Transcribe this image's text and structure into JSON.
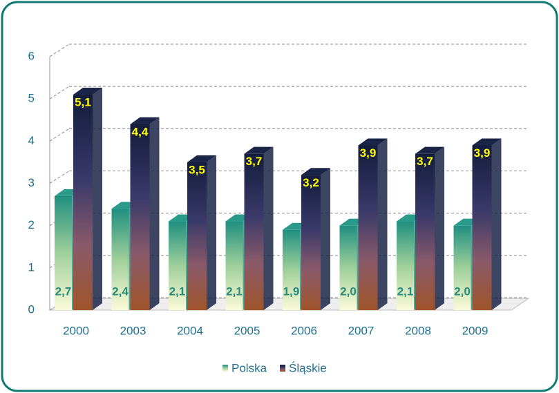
{
  "chart_data": {
    "type": "bar3d",
    "categories": [
      "2000",
      "2003",
      "2004",
      "2005",
      "2006",
      "2007",
      "2008",
      "2009"
    ],
    "series": [
      {
        "name": "Polska",
        "color": "#2a9a8a",
        "values": [
          2.7,
          2.4,
          2.1,
          2.1,
          1.9,
          2.0,
          2.1,
          2.0
        ],
        "value_labels": [
          "2,7",
          "2,4",
          "2,1",
          "2,1",
          "1,9",
          "2,0",
          "2,1",
          "2,0"
        ]
      },
      {
        "name": "Śląskie",
        "color": "#1a2446",
        "values": [
          5.1,
          4.4,
          3.5,
          3.7,
          3.2,
          3.9,
          3.7,
          3.9
        ],
        "value_labels": [
          "5,1",
          "4,4",
          "3,5",
          "3,7",
          "3,2",
          "3,9",
          "3,7",
          "3,9"
        ]
      }
    ],
    "ylim": [
      0,
      6
    ],
    "yticks": [
      0,
      1,
      2,
      3,
      4,
      5,
      6
    ],
    "grid": true,
    "legend": "bottom"
  }
}
